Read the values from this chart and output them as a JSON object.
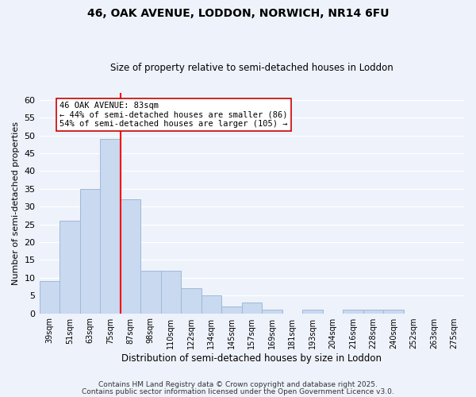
{
  "title1": "46, OAK AVENUE, LODDON, NORWICH, NR14 6FU",
  "title2": "Size of property relative to semi-detached houses in Loddon",
  "xlabel": "Distribution of semi-detached houses by size in Loddon",
  "ylabel": "Number of semi-detached properties",
  "bin_labels": [
    "39sqm",
    "51sqm",
    "63sqm",
    "75sqm",
    "87sqm",
    "98sqm",
    "110sqm",
    "122sqm",
    "134sqm",
    "145sqm",
    "157sqm",
    "169sqm",
    "181sqm",
    "193sqm",
    "204sqm",
    "216sqm",
    "228sqm",
    "240sqm",
    "252sqm",
    "263sqm",
    "275sqm"
  ],
  "bar_values": [
    9,
    26,
    35,
    49,
    32,
    12,
    12,
    7,
    5,
    2,
    3,
    1,
    0,
    1,
    0,
    1,
    1,
    1,
    0,
    0,
    0
  ],
  "bar_color": "#c8d9f0",
  "bar_edge_color": "#a0b8d8",
  "vline_x": 3.5,
  "vline_color": "red",
  "annotation_title": "46 OAK AVENUE: 83sqm",
  "annotation_line1": "← 44% of semi-detached houses are smaller (86)",
  "annotation_line2": "54% of semi-detached houses are larger (105) →",
  "annotation_box_facecolor": "white",
  "annotation_box_edgecolor": "#cc0000",
  "ylim": [
    0,
    62
  ],
  "yticks": [
    0,
    5,
    10,
    15,
    20,
    25,
    30,
    35,
    40,
    45,
    50,
    55,
    60
  ],
  "footer1": "Contains HM Land Registry data © Crown copyright and database right 2025.",
  "footer2": "Contains public sector information licensed under the Open Government Licence v3.0.",
  "background_color": "#eef2fb",
  "grid_color": "#ffffff",
  "title1_fontsize": 10,
  "title2_fontsize": 8.5,
  "ylabel_fontsize": 8,
  "xlabel_fontsize": 8.5,
  "ytick_fontsize": 8,
  "xtick_fontsize": 7,
  "footer_fontsize": 6.5,
  "ann_fontsize": 7.5
}
